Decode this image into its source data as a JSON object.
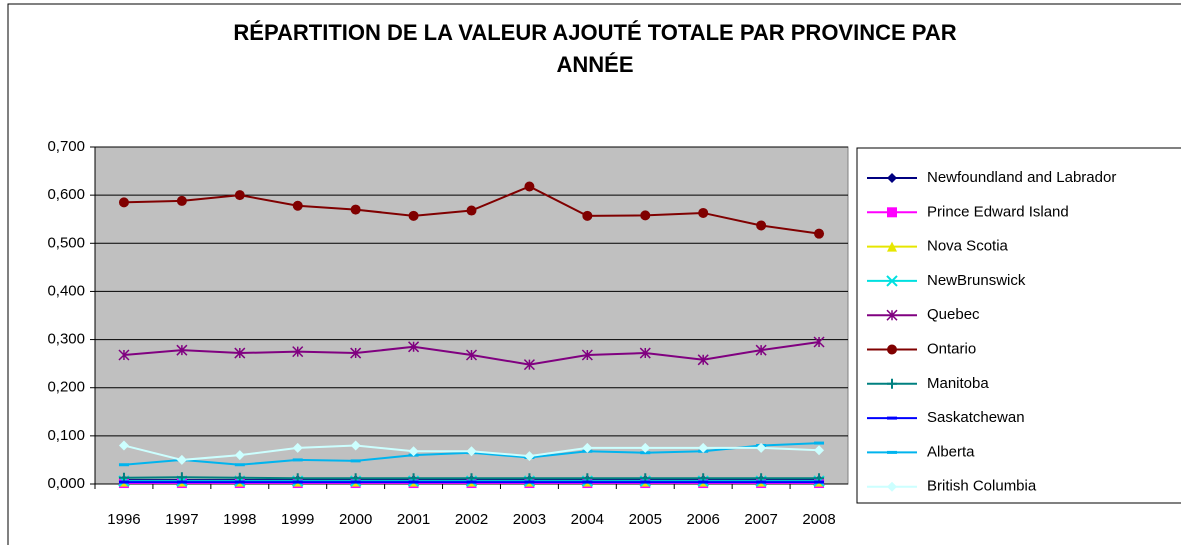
{
  "chart_data": {
    "type": "line",
    "title": [
      "RÉPARTITION DE LA VALEUR AJOUTÉ TOTALE PAR PROVINCE PAR",
      "ANNÉE"
    ],
    "categories": [
      "1996",
      "1997",
      "1998",
      "1999",
      "2000",
      "2001",
      "2002",
      "2003",
      "2004",
      "2005",
      "2006",
      "2007",
      "2008"
    ],
    "ylim": [
      0,
      0.7
    ],
    "yticks": [
      {
        "value": 0,
        "label": "0,000"
      },
      {
        "value": 0.1,
        "label": "0,100"
      },
      {
        "value": 0.2,
        "label": "0,200"
      },
      {
        "value": 0.3,
        "label": "0,300"
      },
      {
        "value": 0.4,
        "label": "0,400"
      },
      {
        "value": 0.5,
        "label": "0,500"
      },
      {
        "value": 0.6,
        "label": "0,600"
      },
      {
        "value": 0.7,
        "label": "0,700"
      }
    ],
    "grid": true,
    "legend": "right",
    "series": [
      {
        "name": "Newfoundland and Labrador",
        "color": "#000080",
        "marker": "diamond",
        "values": [
          0.008,
          0.008,
          0.008,
          0.008,
          0.008,
          0.008,
          0.008,
          0.008,
          0.008,
          0.008,
          0.008,
          0.008,
          0.008
        ]
      },
      {
        "name": "Prince Edward Island",
        "color": "#ff00ff",
        "marker": "square",
        "values": [
          0.002,
          0.002,
          0.002,
          0.002,
          0.002,
          0.002,
          0.002,
          0.002,
          0.002,
          0.002,
          0.002,
          0.002,
          0.002
        ]
      },
      {
        "name": "Nova Scotia",
        "color": "#e6e600",
        "marker": "triangle",
        "values": [
          0.005,
          0.005,
          0.005,
          0.005,
          0.005,
          0.005,
          0.005,
          0.005,
          0.005,
          0.005,
          0.005,
          0.005,
          0.005
        ]
      },
      {
        "name": "NewBrunswick",
        "color": "#00e0e0",
        "marker": "x",
        "values": [
          0.006,
          0.006,
          0.006,
          0.006,
          0.006,
          0.006,
          0.006,
          0.006,
          0.006,
          0.006,
          0.006,
          0.006,
          0.006
        ]
      },
      {
        "name": "Quebec",
        "color": "#800080",
        "marker": "star",
        "values": [
          0.268,
          0.278,
          0.272,
          0.275,
          0.272,
          0.285,
          0.268,
          0.248,
          0.268,
          0.272,
          0.258,
          0.278,
          0.295
        ]
      },
      {
        "name": "Ontario",
        "color": "#800000",
        "marker": "circle",
        "values": [
          0.585,
          0.588,
          0.6,
          0.578,
          0.57,
          0.557,
          0.568,
          0.618,
          0.557,
          0.558,
          0.563,
          0.537,
          0.52
        ]
      },
      {
        "name": "Manitoba",
        "color": "#008080",
        "marker": "plus",
        "values": [
          0.013,
          0.014,
          0.013,
          0.012,
          0.012,
          0.012,
          0.012,
          0.012,
          0.012,
          0.012,
          0.012,
          0.012,
          0.012
        ]
      },
      {
        "name": "Saskatchewan",
        "color": "#0000ff",
        "marker": "dash",
        "values": [
          0.004,
          0.004,
          0.004,
          0.004,
          0.004,
          0.004,
          0.004,
          0.004,
          0.004,
          0.004,
          0.004,
          0.004,
          0.004
        ]
      },
      {
        "name": "Alberta",
        "color": "#00b4ee",
        "marker": "dash",
        "values": [
          0.04,
          0.05,
          0.04,
          0.05,
          0.048,
          0.06,
          0.065,
          0.055,
          0.068,
          0.065,
          0.068,
          0.08,
          0.085
        ]
      },
      {
        "name": "British Columbia",
        "color": "#ccffff",
        "marker": "diamond",
        "values": [
          0.08,
          0.05,
          0.06,
          0.075,
          0.08,
          0.068,
          0.068,
          0.058,
          0.075,
          0.075,
          0.075,
          0.075,
          0.07
        ]
      }
    ]
  }
}
